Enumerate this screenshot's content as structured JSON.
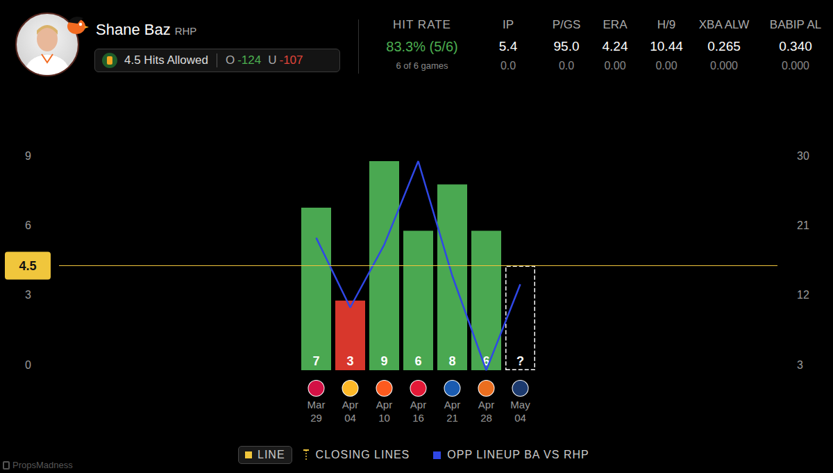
{
  "header": {
    "player": "Shane Baz",
    "position": "RHP",
    "prop": "4.5 Hits Allowed",
    "over_label": "O",
    "over_odds": "-124",
    "under_label": "U",
    "under_odds": "-107"
  },
  "stats": {
    "hit_rate_title": "HIT RATE",
    "hit_rate": "83.3% (5/6)",
    "hit_rate_note": "6 of 6 games",
    "columns": [
      {
        "label": "IP",
        "values": [
          "5.4",
          "0.0"
        ]
      },
      {
        "label": "P/GS",
        "values": [
          "95.0",
          "0.0"
        ]
      },
      {
        "label": "ERA",
        "values": [
          "4.24",
          "0.00"
        ]
      },
      {
        "label": "H/9",
        "values": [
          "10.44",
          "0.00"
        ]
      },
      {
        "label": "XBA ALW",
        "values": [
          "0.265",
          "0.000"
        ]
      },
      {
        "label": "BABIP AL",
        "values": [
          "0.340",
          "0.000"
        ]
      }
    ]
  },
  "chart_data": {
    "type": "bar",
    "categories": [
      "Mar 29",
      "Apr 04",
      "Apr 10",
      "Apr 16",
      "Apr 21",
      "Apr 28",
      "May 04"
    ],
    "values": [
      7,
      3,
      9,
      6,
      8,
      6,
      null
    ],
    "colors": [
      "#4aa851",
      "#d8372c",
      "#4aa851",
      "#4aa851",
      "#4aa851",
      "#4aa851",
      "#ffffff"
    ],
    "data_labels": true,
    "pending_label": "?",
    "line": {
      "value": 4.5,
      "color": "#f0c63c"
    },
    "ylim": [
      0,
      9
    ],
    "yticks": [
      0,
      3,
      6,
      9
    ],
    "y2lim": [
      3,
      30
    ],
    "y2ticks": [
      3,
      12,
      21,
      30
    ],
    "grid": false,
    "series": [
      {
        "name": "OPP LINEUP BA VS RHP",
        "type": "line",
        "axis": "y2",
        "color": "#2f47e6",
        "values": [
          20.1,
          11.1,
          19.2,
          30,
          15.2,
          3,
          14.1
        ]
      }
    ],
    "legend_items": [
      "LINE",
      "CLOSING LINES"
    ]
  },
  "watermark": "PropsMadness"
}
